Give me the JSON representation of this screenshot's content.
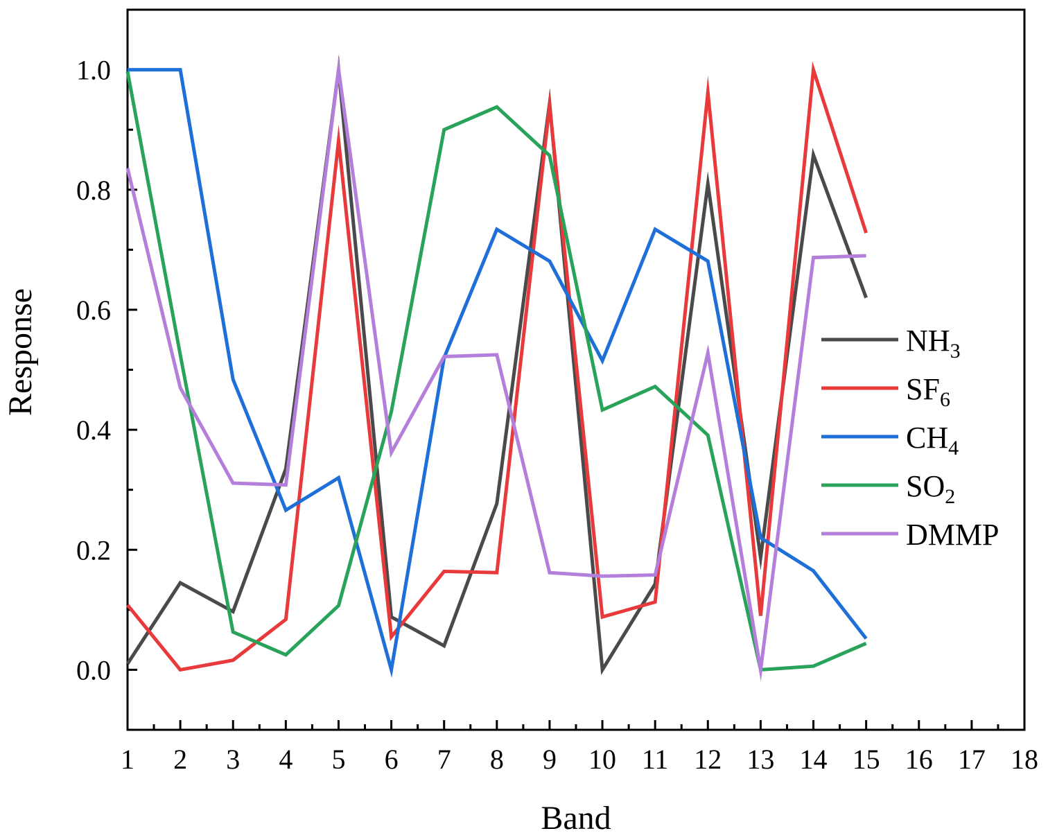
{
  "chart_data": {
    "type": "line",
    "title": "",
    "xlabel": "Band",
    "ylabel": "Response",
    "xlim": [
      1,
      18
    ],
    "ylim": [
      -0.1,
      1.1
    ],
    "x_ticks": [
      1,
      2,
      3,
      4,
      5,
      6,
      7,
      8,
      9,
      10,
      11,
      12,
      13,
      14,
      15,
      16,
      17,
      18
    ],
    "x_tick_labels": [
      "1",
      "2",
      "3",
      "4",
      "5",
      "6",
      "7",
      "8",
      "9",
      "10",
      "11",
      "12",
      "13",
      "14",
      "15",
      "16",
      "17",
      "18"
    ],
    "y_ticks": [
      0.0,
      0.2,
      0.4,
      0.6,
      0.8,
      1.0
    ],
    "y_tick_labels": [
      "0.0",
      "0.2",
      "0.4",
      "0.6",
      "0.8",
      "1.0"
    ],
    "grid": false,
    "legend_position": "right",
    "x": [
      1,
      2,
      3,
      4,
      5,
      6,
      7,
      8,
      9,
      10,
      11,
      12,
      13,
      14,
      15
    ],
    "series": [
      {
        "name": "NH3",
        "label_main": "NH",
        "label_sub": "3",
        "color": "#4a4a4a",
        "values": [
          0.01,
          0.145,
          0.097,
          0.335,
          1.0,
          0.088,
          0.04,
          0.277,
          0.944,
          0.0,
          0.143,
          0.81,
          0.187,
          0.858,
          0.62
        ]
      },
      {
        "name": "SF6",
        "label_main": "SF",
        "label_sub": "6",
        "color": "#e8393b",
        "values": [
          0.108,
          0.0,
          0.016,
          0.084,
          0.882,
          0.055,
          0.164,
          0.162,
          0.94,
          0.088,
          0.113,
          0.962,
          0.09,
          1.0,
          0.728
        ]
      },
      {
        "name": "CH4",
        "label_main": "CH",
        "label_sub": "4",
        "color": "#1f6fd8",
        "values": [
          1.0,
          1.0,
          0.484,
          0.266,
          0.32,
          0.0,
          0.52,
          0.734,
          0.681,
          0.515,
          0.734,
          0.681,
          0.22,
          0.165,
          0.052
        ]
      },
      {
        "name": "SO2",
        "label_main": "SO",
        "label_sub": "2",
        "color": "#2aa35a",
        "values": [
          0.997,
          0.525,
          0.063,
          0.025,
          0.107,
          0.43,
          0.9,
          0.938,
          0.857,
          0.433,
          0.472,
          0.391,
          0.0,
          0.006,
          0.044
        ]
      },
      {
        "name": "DMMP",
        "label_main": "DMMP",
        "label_sub": "",
        "color": "#b47fdb",
        "values": [
          0.836,
          0.47,
          0.311,
          0.308,
          1.0,
          0.362,
          0.522,
          0.525,
          0.162,
          0.156,
          0.158,
          0.528,
          0.0,
          0.687,
          0.69
        ]
      }
    ]
  }
}
